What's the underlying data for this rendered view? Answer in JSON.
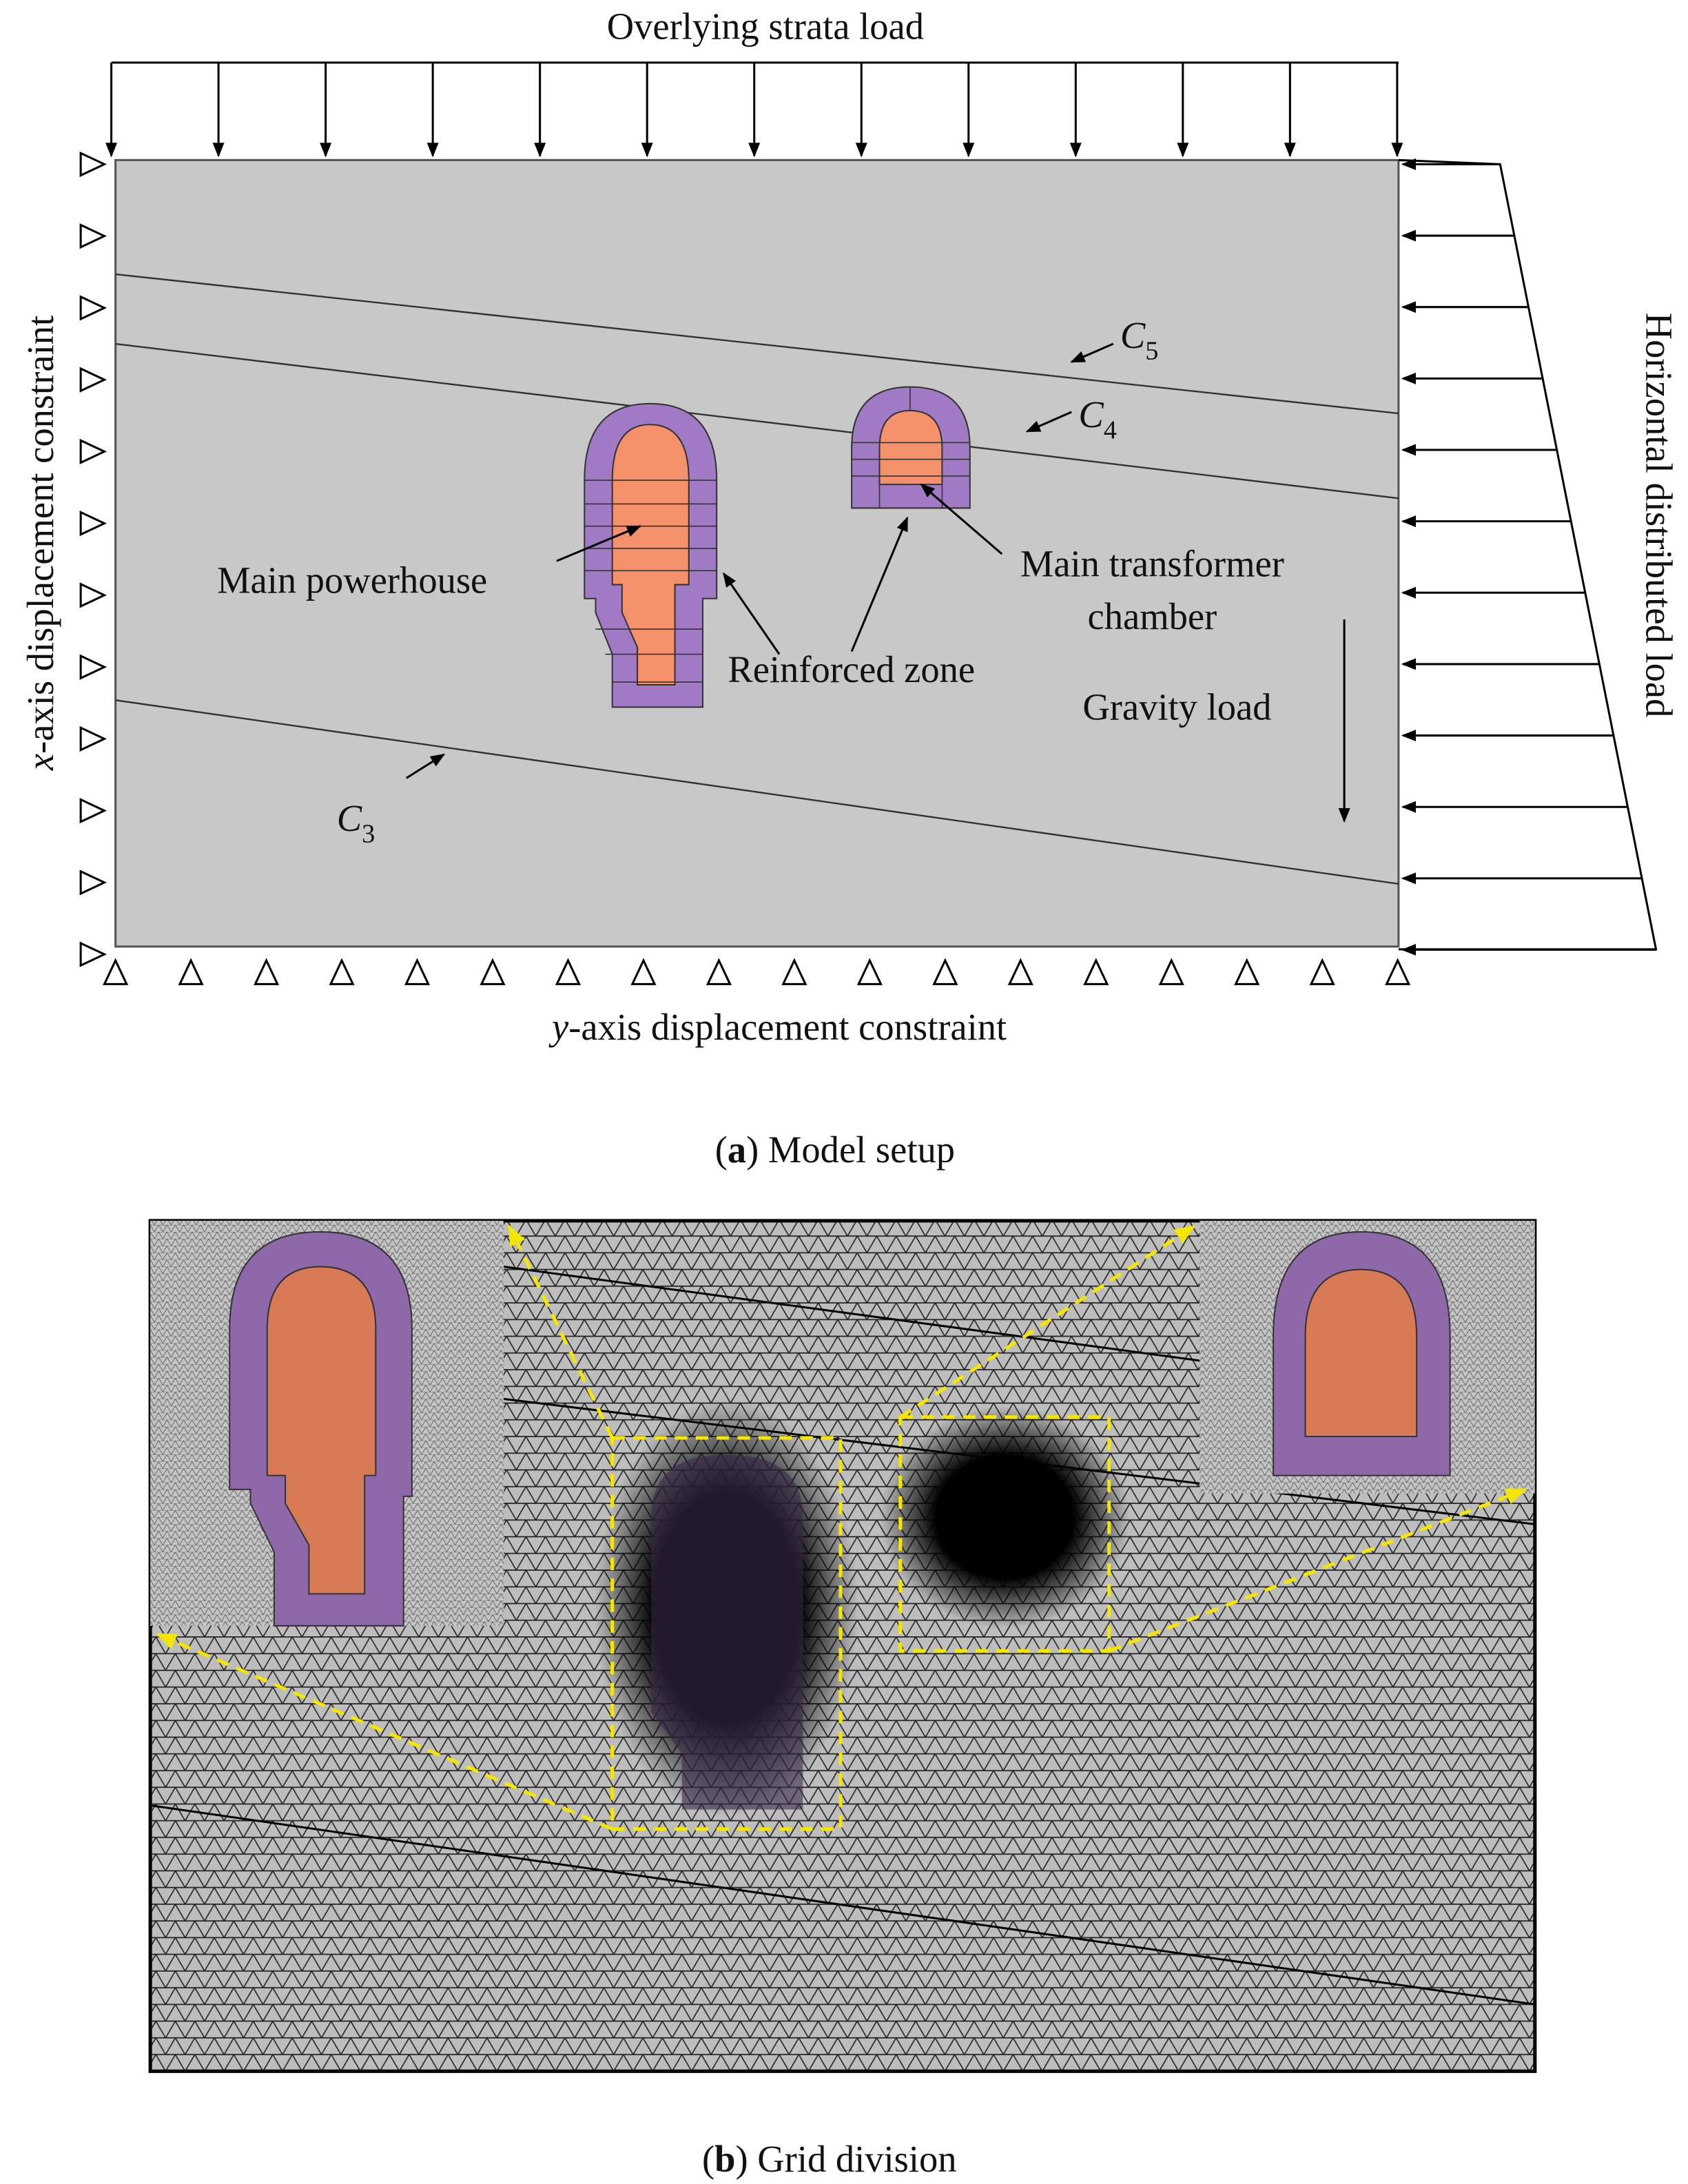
{
  "panel_a": {
    "top_load": "Overlying strata load",
    "side_load": "Horizontal distributed load",
    "left_constraint": [
      "x",
      "-axis displacement constraint"
    ],
    "bottom_constraint": [
      "y",
      "-axis displacement constraint"
    ],
    "strata": [
      [
        "C",
        "5"
      ],
      [
        "C",
        "4"
      ],
      [
        "C",
        "3"
      ]
    ],
    "labels": {
      "powerhouse": "Main powerhouse",
      "transformer": [
        "Main transformer",
        "chamber"
      ],
      "reinforced": "Reinforced zone",
      "gravity": "Gravity load"
    },
    "caption": [
      "(",
      "a",
      ") Model setup"
    ]
  },
  "panel_b": {
    "caption": [
      "(",
      "b",
      ") Grid division"
    ]
  }
}
